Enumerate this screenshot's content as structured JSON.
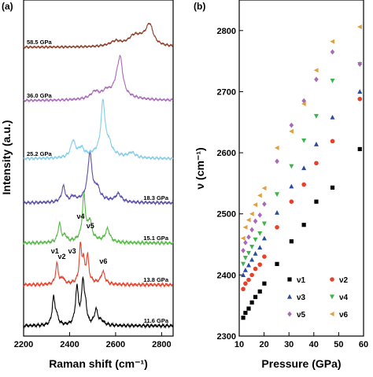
{
  "chart_data": [
    {
      "panel": "(a)",
      "type": "line",
      "xlabel": "Raman shift (cm⁻¹)",
      "ylabel": "Intensity (a.u.)",
      "xlim": [
        2200,
        2850
      ],
      "xticks": [
        "2200",
        "2400",
        "2600",
        "2800"
      ],
      "colors": [
        "#000000",
        "#e8402a",
        "#57b947",
        "#5a4fa8",
        "#82cdea",
        "#a86ab8",
        "#8a3a24"
      ],
      "series": [
        {
          "name": "11.6 GPa",
          "base": 0.0,
          "peaks": [
            [
              2330,
              0.52,
              7
            ],
            [
              2342,
              0.18,
              10
            ],
            [
              2432,
              0.75,
              8
            ],
            [
              2458,
              0.88,
              7
            ],
            [
              2470,
              0.3,
              6
            ],
            [
              2515,
              0.3,
              9
            ],
            [
              2538,
              0.08,
              15
            ]
          ],
          "x": [
            2200,
            2330,
            2432,
            2458,
            2515,
            2850
          ],
          "y": [
            0.0,
            0.52,
            0.75,
            0.88,
            0.3,
            0.0
          ]
        },
        {
          "name": "13.8 GPa",
          "base": 0.0,
          "peaks": [
            [
              2345,
              0.42,
              7
            ],
            [
              2370,
              0.12,
              8
            ],
            [
              2447,
              0.72,
              6
            ],
            [
              2460,
              0.38,
              6
            ],
            [
              2478,
              0.5,
              6
            ],
            [
              2545,
              0.25,
              10
            ],
            [
              2470,
              0.08,
              40
            ]
          ],
          "x": [
            2200,
            2345,
            2447,
            2478,
            2545,
            2850
          ],
          "y": [
            0.0,
            0.42,
            0.72,
            0.5,
            0.25,
            0.0
          ]
        },
        {
          "name": "15.1 GPa",
          "base": 0.0,
          "peaks": [
            [
              2356,
              0.38,
              8
            ],
            [
              2380,
              0.12,
              9
            ],
            [
              2462,
              0.88,
              8
            ],
            [
              2488,
              0.35,
              9
            ],
            [
              2565,
              0.26,
              12
            ],
            [
              2480,
              0.1,
              50
            ]
          ],
          "x": [
            2200,
            2356,
            2462,
            2488,
            2565,
            2850
          ],
          "y": [
            0.0,
            0.38,
            0.88,
            0.35,
            0.26,
            0.0
          ]
        },
        {
          "name": "18.3 GPa",
          "base": 0.0,
          "peaks": [
            [
              2373,
              0.35,
              9
            ],
            [
              2415,
              0.1,
              12
            ],
            [
              2488,
              1.0,
              11
            ],
            [
              2520,
              0.22,
              12
            ],
            [
              2612,
              0.18,
              15
            ],
            [
              2500,
              0.12,
              60
            ]
          ],
          "x": [
            2200,
            2373,
            2488,
            2520,
            2612,
            2850
          ],
          "y": [
            0.0,
            0.35,
            1.0,
            0.22,
            0.18,
            0.0
          ]
        },
        {
          "name": "25.2 GPa",
          "base": 0.0,
          "peaks": [
            [
              2415,
              0.4,
              12
            ],
            [
              2450,
              0.2,
              14
            ],
            [
              2545,
              1.25,
              10
            ],
            [
              2570,
              0.25,
              14
            ],
            [
              2670,
              0.12,
              18
            ],
            [
              2540,
              0.15,
              70
            ]
          ],
          "x": [
            2200,
            2415,
            2545,
            2670,
            2850
          ],
          "y": [
            0.0,
            0.4,
            1.25,
            0.12,
            0.0
          ]
        },
        {
          "name": "36.0 GPa",
          "base": 0.0,
          "peaks": [
            [
              2510,
              0.18,
              20
            ],
            [
              2560,
              0.15,
              20
            ],
            [
              2620,
              0.95,
              13
            ],
            [
              2605,
              0.25,
              15
            ],
            [
              2600,
              0.15,
              80
            ]
          ],
          "x": [
            2200,
            2510,
            2620,
            2850
          ],
          "y": [
            0.0,
            0.18,
            0.95,
            0.0
          ]
        },
        {
          "name": "58.5 GPa",
          "base": 0.0,
          "peaks": [
            [
              2600,
              0.15,
              30
            ],
            [
              2680,
              0.25,
              30
            ],
            [
              2748,
              0.55,
              18
            ],
            [
              2720,
              0.2,
              40
            ]
          ],
          "x": [
            2200,
            2600,
            2748,
            2850
          ],
          "y": [
            0.0,
            0.15,
            0.55,
            0.0
          ]
        }
      ],
      "peak_labels": [
        "ν1",
        "ν2",
        "ν3",
        "ν4",
        "ν5",
        "ν6"
      ]
    },
    {
      "panel": "(b)",
      "type": "scatter",
      "xlabel": "Pressure (GPa)",
      "ylabel": "ν (cm⁻¹)",
      "xlim": [
        10,
        60
      ],
      "ylim": [
        2300,
        2850
      ],
      "xticks": [
        "10",
        "20",
        "30",
        "40",
        "50",
        "60"
      ],
      "yticks": [
        "2300",
        "2400",
        "2500",
        "2600",
        "2700",
        "2800"
      ],
      "series": [
        {
          "name": "ν1",
          "marker": "square",
          "color": "#000000",
          "x": [
            11.6,
            12.5,
            13.8,
            15.1,
            16.5,
            18.3,
            20.1,
            25.2,
            31.0,
            36.0,
            41.0,
            47.5,
            58.5
          ],
          "y": [
            2330,
            2338,
            2345,
            2355,
            2364,
            2373,
            2386,
            2418,
            2455,
            2482,
            2520,
            2543,
            2606
          ]
        },
        {
          "name": "ν2",
          "marker": "circle",
          "color": "#e8402a",
          "x": [
            11.6,
            12.5,
            13.8,
            15.1,
            16.5,
            18.3,
            20.1,
            25.2,
            31.0,
            36.0,
            41.0,
            47.5,
            58.5
          ],
          "y": [
            2377,
            2386,
            2392,
            2400,
            2410,
            2417,
            2430,
            2478,
            2520,
            2548,
            2583,
            2619,
            2688
          ]
        },
        {
          "name": "ν3",
          "marker": "triangle-up",
          "color": "#2c4aa0",
          "x": [
            11.6,
            12.5,
            13.8,
            15.1,
            16.5,
            18.3,
            20.1,
            25.2,
            31.0,
            36.0,
            41.0,
            47.5,
            58.5
          ],
          "y": [
            2400,
            2408,
            2416,
            2425,
            2435,
            2445,
            2460,
            2502,
            2545,
            2575,
            2614,
            2658,
            2700
          ]
        },
        {
          "name": "ν4",
          "marker": "triangle-down",
          "color": "#3cb44b",
          "x": [
            11.6,
            12.5,
            13.8,
            15.1,
            16.5,
            18.3,
            20.1,
            25.2,
            31.0,
            36.0,
            41.0,
            47.5,
            58.5
          ],
          "y": [
            2418,
            2428,
            2436,
            2446,
            2458,
            2468,
            2484,
            2532,
            2578,
            2620,
            2660,
            2718,
            2745
          ]
        },
        {
          "name": "ν5",
          "marker": "diamond",
          "color": "#a86ab8",
          "x": [
            11.6,
            12.5,
            13.8,
            15.1,
            16.5,
            18.3,
            20.1,
            25.2,
            31.0,
            36.0,
            41.0,
            47.5,
            58.5
          ],
          "y": [
            2440,
            2453,
            2462,
            2474,
            2488,
            2498,
            2516,
            2586,
            2645,
            2685,
            2720,
            2765,
            2745
          ]
        },
        {
          "name": "ν6",
          "marker": "triangle-left",
          "color": "#e0a040",
          "x": [
            11.6,
            12.5,
            13.8,
            15.1,
            16.5,
            18.3,
            20.1,
            25.2,
            31.0,
            36.0,
            41.0,
            47.5,
            58.5
          ],
          "y": [
            2460,
            2478,
            2490,
            2500,
            2515,
            2530,
            2542,
            2608,
            2635,
            2680,
            2735,
            2782,
            2806
          ]
        }
      ],
      "legend_position": "bottom-right"
    }
  ]
}
